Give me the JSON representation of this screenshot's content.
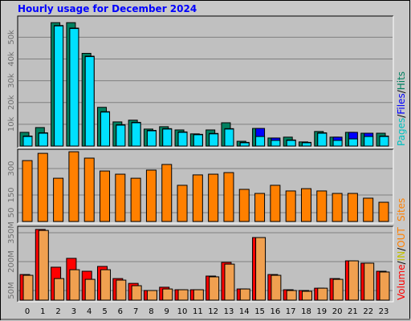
{
  "title": "Hourly usage for December 2024",
  "categories": [
    "0",
    "1",
    "2",
    "3",
    "4",
    "5",
    "6",
    "7",
    "8",
    "9",
    "10",
    "11",
    "12",
    "13",
    "14",
    "15",
    "16",
    "17",
    "18",
    "19",
    "20",
    "21",
    "22",
    "23"
  ],
  "chart_data": [
    {
      "type": "bar",
      "ylim": [
        0,
        59000
      ],
      "yticks": [
        {
          "value": 10000,
          "label": "10k"
        },
        {
          "value": 20000,
          "label": "20k"
        },
        {
          "value": 30000,
          "label": "30k"
        },
        {
          "value": 40000,
          "label": "40k"
        },
        {
          "value": 50000,
          "label": "50k"
        }
      ],
      "legend": [
        {
          "text": "Pages",
          "color": "#00c0c0"
        },
        {
          "text": "/",
          "color": "#000000"
        },
        {
          "text": "Files",
          "color": "#0000ff"
        },
        {
          "text": "/",
          "color": "#000000"
        },
        {
          "text": "Hits",
          "color": "#008060"
        }
      ],
      "series": [
        {
          "color": "#008060",
          "values": [
            6300,
            8500,
            56700,
            56700,
            42600,
            17800,
            11100,
            11900,
            7800,
            8900,
            7400,
            5600,
            7400,
            10700,
            2200,
            8100,
            3700,
            4100,
            1900,
            6700,
            4100,
            6300,
            5900,
            5900
          ]
        },
        {
          "color": "#0000ff",
          "values": [
            4600,
            6100,
            55400,
            54200,
            41300,
            15800,
            9800,
            10900,
            7200,
            8000,
            6500,
            5400,
            5800,
            8000,
            1700,
            8100,
            3700,
            2800,
            1700,
            6100,
            4100,
            6300,
            5900,
            4600
          ]
        },
        {
          "color": "#00e0ff",
          "values": [
            4400,
            5900,
            55200,
            54000,
            41100,
            15600,
            9600,
            10700,
            7000,
            7800,
            6300,
            5200,
            5600,
            7800,
            1500,
            4400,
            2600,
            2600,
            1500,
            5900,
            2600,
            3300,
            4400,
            4400
          ]
        }
      ]
    },
    {
      "type": "bar",
      "ylim": [
        0,
        400
      ],
      "yticks": [
        50,
        150,
        300
      ],
      "legend": [
        {
          "text": "Sites",
          "color": "#ff8000"
        }
      ],
      "series": [
        {
          "color": "#ff8000",
          "values": [
            345,
            386,
            245,
            395,
            359,
            286,
            268,
            245,
            291,
            323,
            205,
            264,
            268,
            277,
            182,
            159,
            205,
            173,
            186,
            173,
            159,
            159,
            132,
            109
          ]
        }
      ]
    },
    {
      "type": "bar",
      "ylim": [
        0,
        375
      ],
      "yticks": [
        {
          "value": 50,
          "label": "50M"
        },
        {
          "value": 200,
          "label": "200M"
        },
        {
          "value": 350,
          "label": "350M"
        }
      ],
      "legend": [
        {
          "text": "Volume",
          "color": "#ff0000"
        },
        {
          "text": "/",
          "color": "#000000"
        },
        {
          "text": "IN",
          "color": "#c0c000"
        },
        {
          "text": "/",
          "color": "#000000"
        },
        {
          "text": "OUT",
          "color": "#ff8000"
        }
      ],
      "series": [
        {
          "color": "#ff0000",
          "values": [
            133,
            367,
            171,
            217,
            150,
            175,
            112,
            87,
            50,
            67,
            54,
            54,
            125,
            196,
            58,
            325,
            133,
            54,
            50,
            62,
            112,
            204,
            192,
            150
          ]
        },
        {
          "color": "#f0a050",
          "values": [
            129,
            362,
            112,
            158,
            108,
            158,
            104,
            75,
            50,
            58,
            54,
            54,
            121,
            187,
            58,
            325,
            129,
            50,
            46,
            62,
            108,
            204,
            192,
            146
          ]
        }
      ]
    }
  ]
}
